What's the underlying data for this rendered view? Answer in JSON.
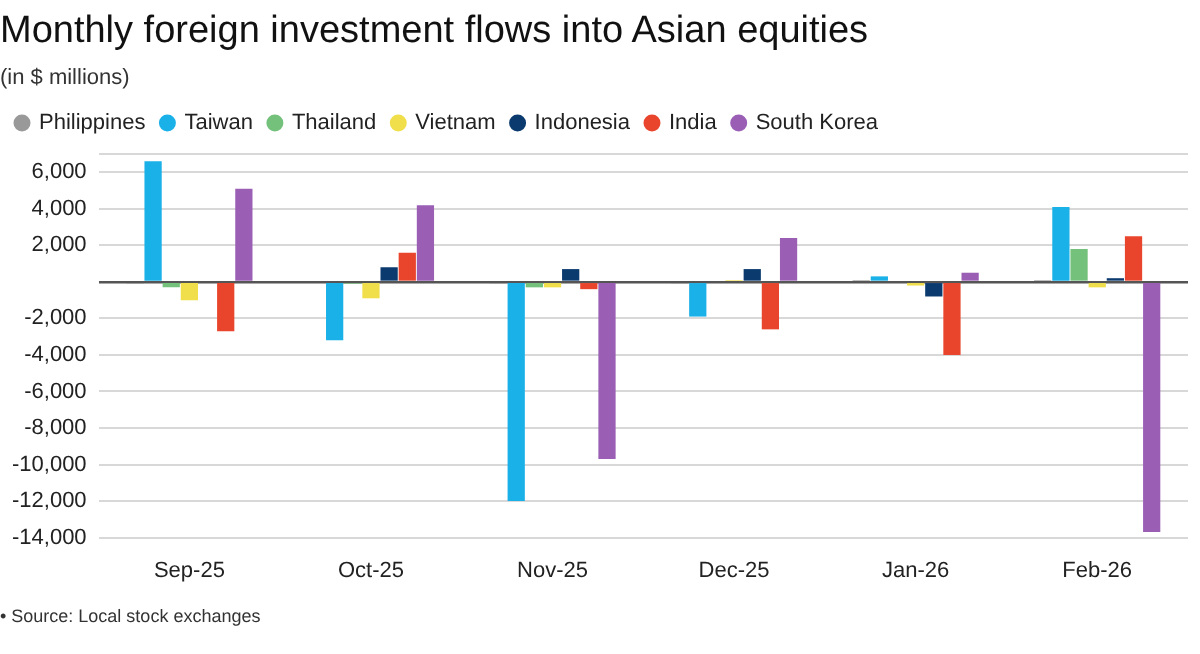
{
  "chart_data": {
    "type": "bar",
    "title": "Monthly foreign investment flows into Asian equities",
    "subtitle": "(in $ millions)",
    "categories": [
      "Sep-25",
      "Oct-25",
      "Nov-25",
      "Dec-25",
      "Jan-26",
      "Feb-26"
    ],
    "series": [
      {
        "name": "Philippines",
        "color": "#999999",
        "values": [
          -100,
          0,
          -100,
          -100,
          100,
          100
        ]
      },
      {
        "name": "Taiwan",
        "color": "#1ab0e8",
        "values": [
          6600,
          -3200,
          -12000,
          -1900,
          300,
          4100
        ]
      },
      {
        "name": "Thailand",
        "color": "#74c17b",
        "values": [
          -300,
          -100,
          -300,
          0,
          0,
          1800
        ]
      },
      {
        "name": "Vietnam",
        "color": "#f0df4a",
        "values": [
          -1000,
          -900,
          -300,
          100,
          -200,
          -300
        ]
      },
      {
        "name": "Indonesia",
        "color": "#0b3a6e",
        "values": [
          0,
          800,
          700,
          700,
          -800,
          200
        ]
      },
      {
        "name": "India",
        "color": "#e8452c",
        "values": [
          -2700,
          1600,
          -400,
          -2600,
          -4000,
          2500
        ]
      },
      {
        "name": "South Korea",
        "color": "#9a5fb5",
        "values": [
          5100,
          4200,
          -9700,
          2400,
          500,
          -13700
        ]
      }
    ],
    "ylim": [
      -14000,
      7000
    ],
    "yticks": [
      {
        "value": -14000,
        "label": "-14,000"
      },
      {
        "value": -12000,
        "label": "-12,000"
      },
      {
        "value": -10000,
        "label": "-10,000"
      },
      {
        "value": -8000,
        "label": "-8,000"
      },
      {
        "value": -6000,
        "label": "-6,000"
      },
      {
        "value": -4000,
        "label": "-4,000"
      },
      {
        "value": -2000,
        "label": "-2,000"
      },
      {
        "value": 0,
        "label": null
      },
      {
        "value": 2000,
        "label": "2,000"
      },
      {
        "value": 4000,
        "label": "4,000"
      },
      {
        "value": 6000,
        "label": "6,000"
      },
      {
        "value": 7000,
        "label": null
      }
    ],
    "grid": "y",
    "legend": "top left",
    "annotations": [
      "• Source: Local stock exchanges"
    ]
  }
}
